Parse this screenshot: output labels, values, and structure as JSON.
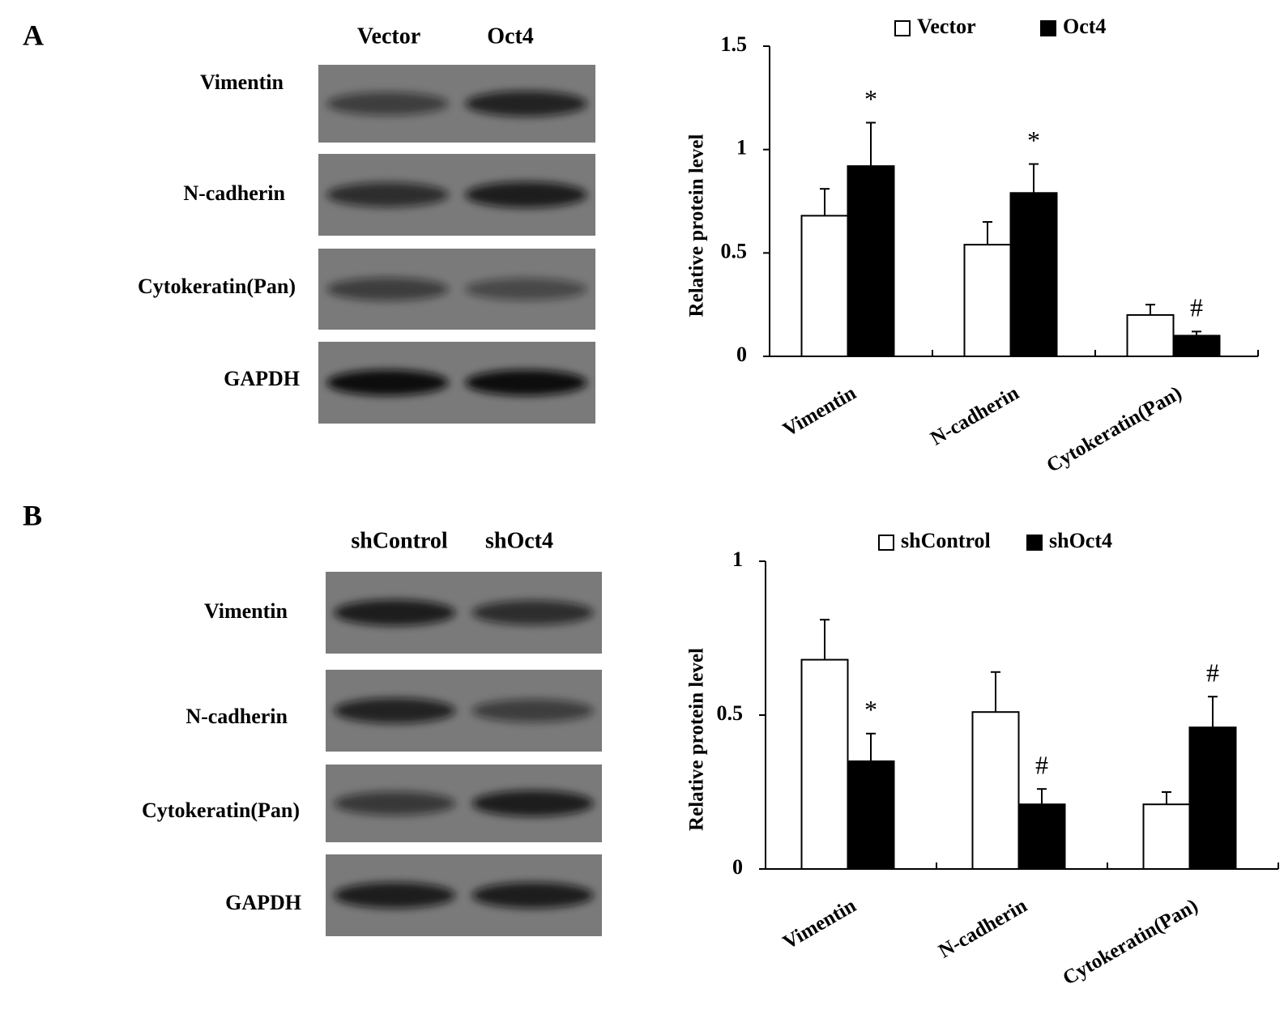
{
  "panels": [
    {
      "letter": "A",
      "lanes": [
        "Vector",
        "Oct4"
      ],
      "rows": [
        "Vimentin",
        "N-cadherin",
        "Cytokeratin(Pan)",
        "GAPDH"
      ]
    },
    {
      "letter": "B",
      "lanes": [
        "shControl",
        "shOct4"
      ],
      "rows": [
        "Vimentin",
        "N-cadherin",
        "Cytokeratin(Pan)",
        "GAPDH"
      ]
    }
  ],
  "chart_data": [
    {
      "type": "bar",
      "y_label": "Relative protein level",
      "categories": [
        "Vimentin",
        "N-cadherin",
        "Cytokeratin(Pan)"
      ],
      "series": [
        {
          "name": "Vector",
          "color": "#ffffff",
          "values": [
            0.68,
            0.54,
            0.2
          ],
          "errors": [
            0.13,
            0.11,
            0.05
          ]
        },
        {
          "name": "Oct4",
          "color": "#000000",
          "values": [
            0.92,
            0.79,
            0.1
          ],
          "errors": [
            0.21,
            0.14,
            0.02
          ],
          "annotations": [
            "*",
            "*",
            "#"
          ]
        }
      ],
      "ylim": [
        0,
        1.5
      ],
      "yticks": [
        0,
        0.5,
        1,
        1.5
      ],
      "legend": "top"
    },
    {
      "type": "bar",
      "y_label": "Relative protein level",
      "categories": [
        "Vimentin",
        "N-cadherin",
        "Cytokeratin(Pan)"
      ],
      "series": [
        {
          "name": "shControl",
          "color": "#ffffff",
          "values": [
            0.68,
            0.51,
            0.21
          ],
          "errors": [
            0.13,
            0.13,
            0.04
          ]
        },
        {
          "name": "shOct4",
          "color": "#000000",
          "values": [
            0.35,
            0.21,
            0.46
          ],
          "errors": [
            0.09,
            0.05,
            0.1
          ],
          "annotations": [
            "*",
            "#",
            "#"
          ]
        }
      ],
      "ylim": [
        0,
        1
      ],
      "yticks": [
        0,
        0.5,
        1
      ],
      "legend": "top"
    }
  ]
}
